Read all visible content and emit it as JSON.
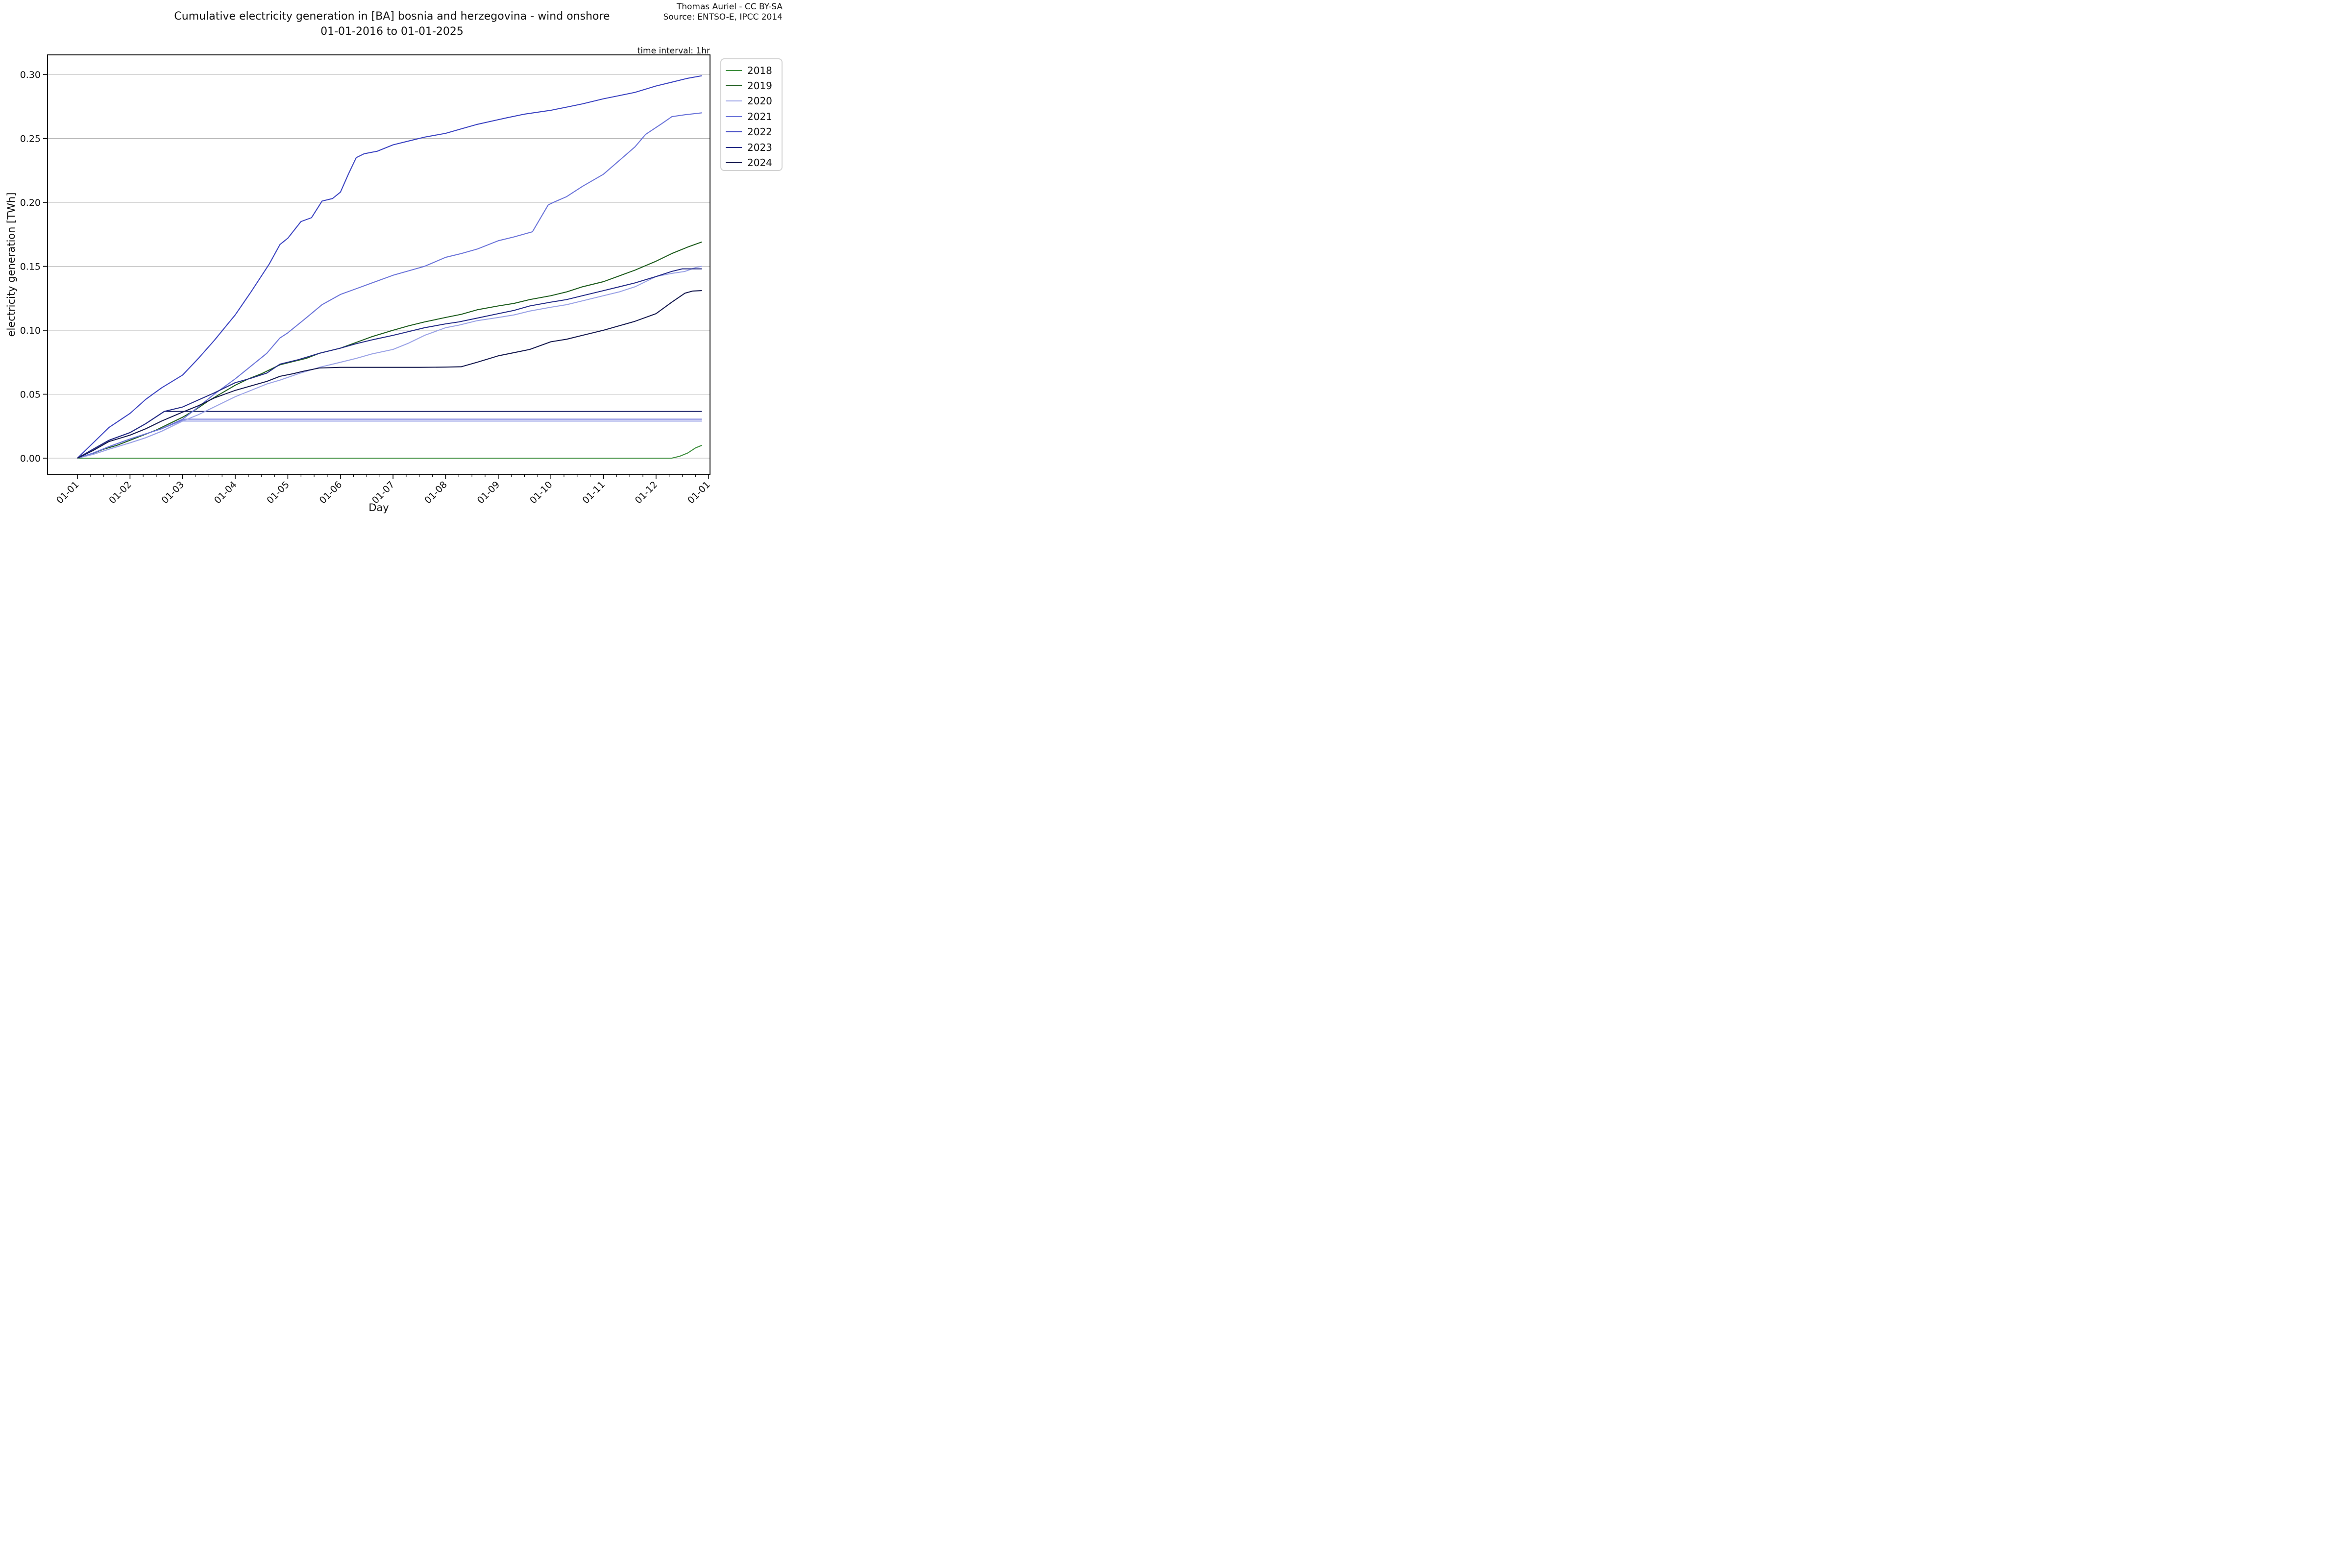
{
  "header": {
    "title_line1": "Cumulative electricity generation in [BA] bosnia and herzegovina - wind onshore",
    "title_line2": "01-01-2016 to 01-01-2025",
    "attribution_line1": "Thomas Auriel - CC BY-SA",
    "attribution_line2": "Source: ENTSO-E, IPCC 2014",
    "time_interval_note": "time interval: 1hr"
  },
  "chart_data": {
    "type": "line",
    "title": "Cumulative electricity generation in [BA] bosnia and herzegovina - wind onshore",
    "subtitle": "01-01-2016 to 01-01-2025",
    "xlabel": "Day",
    "ylabel": "electricity generation [TWh]",
    "x_tick_labels": [
      "01-01",
      "01-02",
      "01-03",
      "01-04",
      "01-05",
      "01-06",
      "01-07",
      "01-08",
      "01-09",
      "01-10",
      "01-11",
      "01-12",
      "01-01"
    ],
    "y_ticks": [
      0.0,
      0.05,
      0.1,
      0.15,
      0.2,
      0.25,
      0.3
    ],
    "y_tick_labels": [
      "0.00",
      "0.05",
      "0.10",
      "0.15",
      "0.20",
      "0.25",
      "0.30"
    ],
    "ylim": [
      -0.013,
      0.315
    ],
    "grid": "horizontal-only",
    "legend_position": "outside-upper-right",
    "legend": [
      {
        "label": "2018",
        "color": "#3e8e3e"
      },
      {
        "label": "2019",
        "color": "#1e5c1e"
      },
      {
        "label": "2020",
        "color": "#9ba3e6"
      },
      {
        "label": "2021",
        "color": "#6b74d9"
      },
      {
        "label": "2022",
        "color": "#3b43c1"
      },
      {
        "label": "2023",
        "color": "#252c87"
      },
      {
        "label": "2024",
        "color": "#161a4f"
      }
    ],
    "x_unit": "months from Jan 1 (0 = 01-01, 12 = next 01-01)",
    "note": "Three additional flat lines are drawn without legend entries: they rise in Jan-Feb then stay constant (~0.037, ~0.0305 and ~0.029 TWh) to the end of the year. The 2018 line lies at 0.000 all year and ticks up to ~0.010 in late December.",
    "series": [
      {
        "name": "unlabeled-flat-navy",
        "color": "#222a6e",
        "in_legend": false,
        "final_value": 0.0365,
        "points": [
          [
            0,
            0
          ],
          [
            0.3,
            0.007
          ],
          [
            0.6,
            0.014
          ],
          [
            1,
            0.02
          ],
          [
            1.3,
            0.027
          ],
          [
            1.65,
            0.0365
          ],
          [
            11.87,
            0.0365
          ]
        ]
      },
      {
        "name": "unlabeled-flat-periwinkle-medium",
        "color": "#7b82de",
        "in_legend": false,
        "final_value": 0.0305,
        "points": [
          [
            0,
            0
          ],
          [
            0.3,
            0.004
          ],
          [
            0.6,
            0.009
          ],
          [
            1,
            0.015
          ],
          [
            1.3,
            0.019
          ],
          [
            1.6,
            0.023
          ],
          [
            2.05,
            0.0305
          ],
          [
            11.87,
            0.0305
          ]
        ]
      },
      {
        "name": "unlabeled-flat-periwinkle-light",
        "color": "#98a0e6",
        "in_legend": false,
        "final_value": 0.029,
        "points": [
          [
            0,
            0
          ],
          [
            0.3,
            0.003
          ],
          [
            0.6,
            0.007
          ],
          [
            1,
            0.012
          ],
          [
            1.3,
            0.016
          ],
          [
            1.6,
            0.021
          ],
          [
            2,
            0.029
          ],
          [
            11.87,
            0.029
          ]
        ]
      },
      {
        "name": "2018",
        "color": "#3e8e3e",
        "in_legend": true,
        "final_value": 0.01,
        "points": [
          [
            0,
            0
          ],
          [
            11.3,
            0
          ],
          [
            11.45,
            0.0015
          ],
          [
            11.6,
            0.004
          ],
          [
            11.75,
            0.008
          ],
          [
            11.87,
            0.01
          ]
        ]
      },
      {
        "name": "2019",
        "color": "#1e5c1e",
        "in_legend": true,
        "final_value": 0.169,
        "points": [
          [
            0,
            0
          ],
          [
            0.25,
            0.003
          ],
          [
            0.5,
            0.007
          ],
          [
            0.75,
            0.01
          ],
          [
            1,
            0.014
          ],
          [
            1.25,
            0.018
          ],
          [
            1.5,
            0.022
          ],
          [
            1.75,
            0.027
          ],
          [
            2,
            0.032
          ],
          [
            2.25,
            0.038
          ],
          [
            2.5,
            0.045
          ],
          [
            2.75,
            0.051
          ],
          [
            3,
            0.057
          ],
          [
            3.25,
            0.062
          ],
          [
            3.5,
            0.066
          ],
          [
            3.85,
            0.073
          ],
          [
            4.1,
            0.0755
          ],
          [
            4.35,
            0.078
          ],
          [
            4.6,
            0.082
          ],
          [
            5,
            0.086
          ],
          [
            5.3,
            0.0905
          ],
          [
            5.6,
            0.095
          ],
          [
            6,
            0.1
          ],
          [
            6.3,
            0.1035
          ],
          [
            6.6,
            0.1065
          ],
          [
            7,
            0.11
          ],
          [
            7.3,
            0.1125
          ],
          [
            7.6,
            0.116
          ],
          [
            8,
            0.119
          ],
          [
            8.3,
            0.121
          ],
          [
            8.6,
            0.124
          ],
          [
            9,
            0.127
          ],
          [
            9.3,
            0.13
          ],
          [
            9.6,
            0.134
          ],
          [
            10,
            0.138
          ],
          [
            10.3,
            0.1425
          ],
          [
            10.6,
            0.147
          ],
          [
            11,
            0.154
          ],
          [
            11.3,
            0.16
          ],
          [
            11.6,
            0.165
          ],
          [
            11.87,
            0.169
          ]
        ]
      },
      {
        "name": "2020",
        "color": "#9ba3e6",
        "in_legend": true,
        "final_value": 0.15,
        "points": [
          [
            0,
            0
          ],
          [
            0.3,
            0.003
          ],
          [
            0.6,
            0.007
          ],
          [
            1,
            0.012
          ],
          [
            1.3,
            0.016
          ],
          [
            1.6,
            0.021
          ],
          [
            2,
            0.029
          ],
          [
            2.3,
            0.034
          ],
          [
            2.6,
            0.04
          ],
          [
            3,
            0.048
          ],
          [
            3.3,
            0.053
          ],
          [
            3.6,
            0.058
          ],
          [
            3.85,
            0.061
          ],
          [
            4.2,
            0.066
          ],
          [
            4.6,
            0.071
          ],
          [
            5,
            0.075
          ],
          [
            5.3,
            0.078
          ],
          [
            5.6,
            0.0815
          ],
          [
            6,
            0.085
          ],
          [
            6.3,
            0.09
          ],
          [
            6.6,
            0.096
          ],
          [
            7,
            0.102
          ],
          [
            7.25,
            0.104
          ],
          [
            7.6,
            0.1075
          ],
          [
            8,
            0.11
          ],
          [
            8.3,
            0.112
          ],
          [
            8.6,
            0.115
          ],
          [
            9,
            0.118
          ],
          [
            9.3,
            0.12
          ],
          [
            9.6,
            0.123
          ],
          [
            10,
            0.127
          ],
          [
            10.3,
            0.13
          ],
          [
            10.6,
            0.134
          ],
          [
            11,
            0.142
          ],
          [
            11.3,
            0.1445
          ],
          [
            11.55,
            0.146
          ],
          [
            11.75,
            0.149
          ],
          [
            11.87,
            0.15
          ]
        ]
      },
      {
        "name": "2021",
        "color": "#6b74d9",
        "in_legend": true,
        "final_value": 0.27,
        "points": [
          [
            0,
            0
          ],
          [
            0.3,
            0.004
          ],
          [
            0.6,
            0.009
          ],
          [
            1,
            0.015
          ],
          [
            1.3,
            0.019
          ],
          [
            1.6,
            0.023
          ],
          [
            2,
            0.0305
          ],
          [
            2.3,
            0.04
          ],
          [
            2.6,
            0.05
          ],
          [
            3,
            0.062
          ],
          [
            3.3,
            0.072
          ],
          [
            3.6,
            0.082
          ],
          [
            3.85,
            0.094
          ],
          [
            4,
            0.098
          ],
          [
            4.3,
            0.108
          ],
          [
            4.65,
            0.12
          ],
          [
            5,
            0.128
          ],
          [
            5.3,
            0.1325
          ],
          [
            5.6,
            0.137
          ],
          [
            6,
            0.143
          ],
          [
            6.3,
            0.1465
          ],
          [
            6.6,
            0.15
          ],
          [
            7,
            0.157
          ],
          [
            7.3,
            0.16
          ],
          [
            7.6,
            0.1635
          ],
          [
            8,
            0.17
          ],
          [
            8.3,
            0.173
          ],
          [
            8.65,
            0.177
          ],
          [
            8.95,
            0.198
          ],
          [
            9.05,
            0.2
          ],
          [
            9.3,
            0.2045
          ],
          [
            9.6,
            0.2125
          ],
          [
            10,
            0.222
          ],
          [
            10.3,
            0.2327
          ],
          [
            10.6,
            0.2434
          ],
          [
            10.8,
            0.2531
          ],
          [
            11.1,
            0.2613
          ],
          [
            11.3,
            0.267
          ],
          [
            11.55,
            0.2685
          ],
          [
            11.87,
            0.27
          ]
        ]
      },
      {
        "name": "2022",
        "color": "#3b43c1",
        "in_legend": true,
        "final_value": 0.299,
        "points": [
          [
            0,
            0
          ],
          [
            0.3,
            0.012
          ],
          [
            0.6,
            0.024
          ],
          [
            1,
            0.035
          ],
          [
            1.3,
            0.046
          ],
          [
            1.6,
            0.055
          ],
          [
            2,
            0.065
          ],
          [
            2.3,
            0.078
          ],
          [
            2.6,
            0.092
          ],
          [
            3,
            0.112
          ],
          [
            3.3,
            0.13
          ],
          [
            3.65,
            0.152
          ],
          [
            3.85,
            0.167
          ],
          [
            4,
            0.172
          ],
          [
            4.25,
            0.185
          ],
          [
            4.45,
            0.188
          ],
          [
            4.65,
            0.201
          ],
          [
            4.85,
            0.203
          ],
          [
            5,
            0.208
          ],
          [
            5.15,
            0.222
          ],
          [
            5.3,
            0.235
          ],
          [
            5.45,
            0.238
          ],
          [
            5.7,
            0.24
          ],
          [
            6,
            0.245
          ],
          [
            6.3,
            0.248
          ],
          [
            6.6,
            0.251
          ],
          [
            7,
            0.254
          ],
          [
            7.3,
            0.2575
          ],
          [
            7.6,
            0.261
          ],
          [
            8.15,
            0.266
          ],
          [
            8.5,
            0.269
          ],
          [
            9,
            0.272
          ],
          [
            9.3,
            0.2745
          ],
          [
            9.6,
            0.277
          ],
          [
            10,
            0.281
          ],
          [
            10.3,
            0.2835
          ],
          [
            10.6,
            0.286
          ],
          [
            11,
            0.291
          ],
          [
            11.3,
            0.294
          ],
          [
            11.6,
            0.297
          ],
          [
            11.87,
            0.299
          ]
        ]
      },
      {
        "name": "2023",
        "color": "#252c87",
        "in_legend": true,
        "final_value": 0.148,
        "points": [
          [
            0,
            0
          ],
          [
            0.3,
            0.007
          ],
          [
            0.6,
            0.014
          ],
          [
            1,
            0.02
          ],
          [
            1.3,
            0.027
          ],
          [
            1.65,
            0.0365
          ],
          [
            2,
            0.04
          ],
          [
            2.3,
            0.0455
          ],
          [
            2.6,
            0.051
          ],
          [
            3,
            0.059
          ],
          [
            3.3,
            0.0625
          ],
          [
            3.6,
            0.0665
          ],
          [
            3.85,
            0.0735
          ],
          [
            4.2,
            0.077
          ],
          [
            4.6,
            0.082
          ],
          [
            5,
            0.086
          ],
          [
            5.3,
            0.0895
          ],
          [
            5.6,
            0.0925
          ],
          [
            6,
            0.096
          ],
          [
            6.3,
            0.099
          ],
          [
            6.6,
            0.102
          ],
          [
            7,
            0.105
          ],
          [
            7.25,
            0.1065
          ],
          [
            7.6,
            0.1095
          ],
          [
            8,
            0.113
          ],
          [
            8.3,
            0.1155
          ],
          [
            8.6,
            0.119
          ],
          [
            9,
            0.122
          ],
          [
            9.3,
            0.124
          ],
          [
            9.6,
            0.127
          ],
          [
            10,
            0.131
          ],
          [
            10.3,
            0.134
          ],
          [
            10.6,
            0.137
          ],
          [
            11,
            0.142
          ],
          [
            11.3,
            0.146
          ],
          [
            11.5,
            0.148
          ],
          [
            11.87,
            0.148
          ]
        ]
      },
      {
        "name": "2024",
        "color": "#161a4f",
        "in_legend": true,
        "final_value": 0.131,
        "points": [
          [
            0,
            0
          ],
          [
            0.3,
            0.006
          ],
          [
            0.6,
            0.013
          ],
          [
            1,
            0.018
          ],
          [
            1.3,
            0.023
          ],
          [
            1.6,
            0.029
          ],
          [
            2,
            0.036
          ],
          [
            2.3,
            0.041
          ],
          [
            2.6,
            0.047
          ],
          [
            3,
            0.053
          ],
          [
            3.3,
            0.0565
          ],
          [
            3.6,
            0.06
          ],
          [
            3.85,
            0.064
          ],
          [
            4.1,
            0.066
          ],
          [
            4.3,
            0.068
          ],
          [
            4.6,
            0.0705
          ],
          [
            5,
            0.071
          ],
          [
            5.5,
            0.071
          ],
          [
            6,
            0.071
          ],
          [
            6.5,
            0.071
          ],
          [
            7,
            0.0712
          ],
          [
            7.3,
            0.0715
          ],
          [
            7.6,
            0.075
          ],
          [
            8,
            0.08
          ],
          [
            8.3,
            0.0825
          ],
          [
            8.6,
            0.085
          ],
          [
            9,
            0.091
          ],
          [
            9.3,
            0.093
          ],
          [
            9.6,
            0.096
          ],
          [
            10,
            0.1
          ],
          [
            10.3,
            0.1035
          ],
          [
            10.6,
            0.107
          ],
          [
            11,
            0.113
          ],
          [
            11.3,
            0.122
          ],
          [
            11.55,
            0.129
          ],
          [
            11.7,
            0.1307
          ],
          [
            11.87,
            0.131
          ]
        ]
      }
    ],
    "style": {
      "grid_color": "#b3b3b3",
      "spine_color": "#000000",
      "background": "#ffffff",
      "line_width": 2.1
    }
  }
}
